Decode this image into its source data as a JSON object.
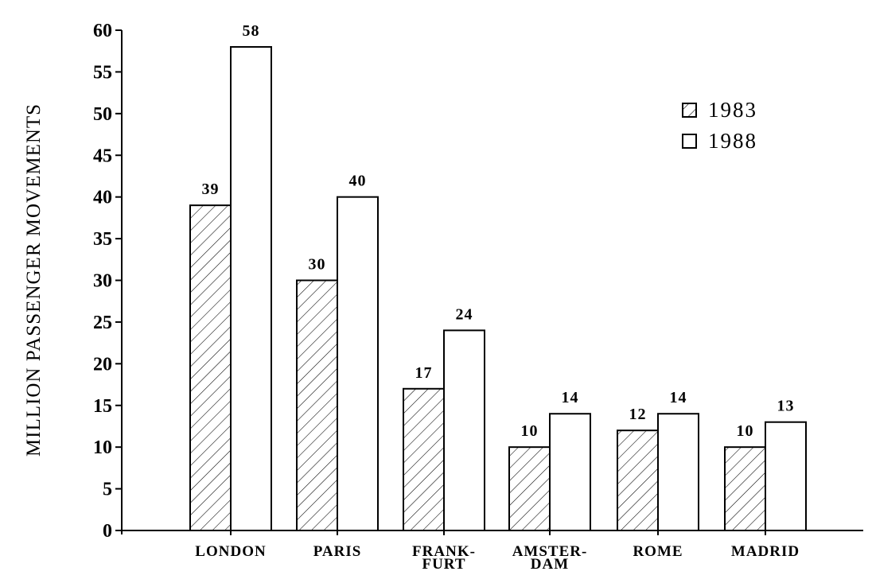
{
  "chart_data": {
    "type": "bar",
    "title": "",
    "xlabel": "",
    "ylabel": "MILLION PASSENGER MOVEMENTS",
    "ylim": [
      0,
      60
    ],
    "yticks": [
      0,
      5,
      10,
      15,
      20,
      25,
      30,
      35,
      40,
      45,
      50,
      55,
      60
    ],
    "grid": false,
    "legend_position": "top-right",
    "categories": [
      [
        "LONDON"
      ],
      [
        "PARIS"
      ],
      [
        "FRANK-",
        "FURT"
      ],
      [
        "AMSTER-",
        "DAM"
      ],
      [
        "ROME"
      ],
      [
        "MADRID"
      ]
    ],
    "series": [
      {
        "name": "1983",
        "values": [
          39,
          30,
          17,
          10,
          12,
          10
        ],
        "fill": "hatched"
      },
      {
        "name": "1988",
        "values": [
          58,
          40,
          24,
          14,
          14,
          13
        ],
        "fill": "white"
      }
    ],
    "colors": {
      "ink": "#000000",
      "background": "#ffffff"
    }
  }
}
